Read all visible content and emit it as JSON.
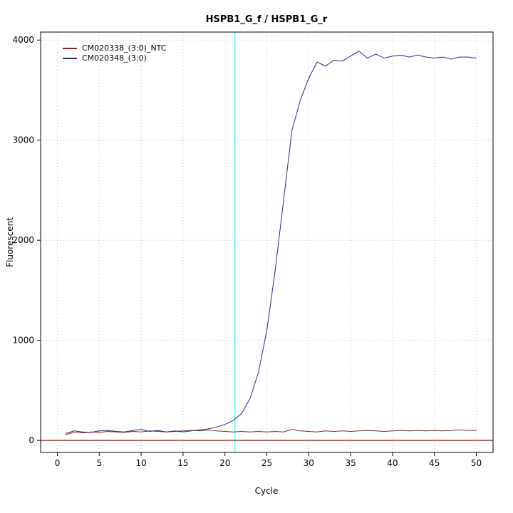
{
  "chart_data": {
    "type": "line",
    "title": "HSPB1_G_f / HSPB1_G_r",
    "xlabel": "Cycle",
    "ylabel": "Fluorescent",
    "xlim": [
      -2,
      52
    ],
    "ylim": [
      -120,
      4080
    ],
    "x_ticks": [
      0,
      5,
      10,
      15,
      20,
      25,
      30,
      35,
      40,
      45,
      50
    ],
    "y_ticks": [
      0,
      1000,
      2000,
      3000,
      4000
    ],
    "grid": "dotted",
    "legend_position": "top-left",
    "x": [
      1,
      2,
      3,
      4,
      5,
      6,
      7,
      8,
      9,
      10,
      11,
      12,
      13,
      14,
      15,
      16,
      17,
      18,
      19,
      20,
      21,
      22,
      23,
      24,
      25,
      26,
      27,
      28,
      29,
      30,
      31,
      32,
      33,
      34,
      35,
      36,
      37,
      38,
      39,
      40,
      41,
      42,
      43,
      44,
      45,
      46,
      47,
      48,
      49,
      50
    ],
    "series": [
      {
        "name": "CM020338_(3:0)_NTC",
        "color": "#8b2323",
        "values": [
          60,
          80,
          75,
          85,
          80,
          90,
          85,
          80,
          90,
          85,
          95,
          90,
          85,
          90,
          95,
          100,
          95,
          105,
          95,
          90,
          85,
          90,
          85,
          90,
          85,
          90,
          85,
          110,
          95,
          90,
          85,
          95,
          90,
          95,
          90,
          95,
          100,
          95,
          90,
          95,
          100,
          95,
          100,
          95,
          100,
          95,
          100,
          105,
          100,
          100
        ]
      },
      {
        "name": "CM020348_(3:0)",
        "color": "#26268c",
        "values": [
          70,
          95,
          85,
          80,
          95,
          100,
          90,
          85,
          100,
          110,
          90,
          100,
          85,
          95,
          85,
          95,
          105,
          115,
          135,
          160,
          200,
          270,
          420,
          680,
          1100,
          1700,
          2400,
          3100,
          3400,
          3620,
          3780,
          3740,
          3800,
          3790,
          3840,
          3890,
          3820,
          3860,
          3820,
          3840,
          3850,
          3830,
          3850,
          3830,
          3820,
          3830,
          3810,
          3830,
          3830,
          3820
        ]
      }
    ],
    "annotations": {
      "ct_line_x": 21.2,
      "ct_color": "#00ffff",
      "threshold_line_y": 0,
      "threshold_color": "#8b2323"
    }
  }
}
